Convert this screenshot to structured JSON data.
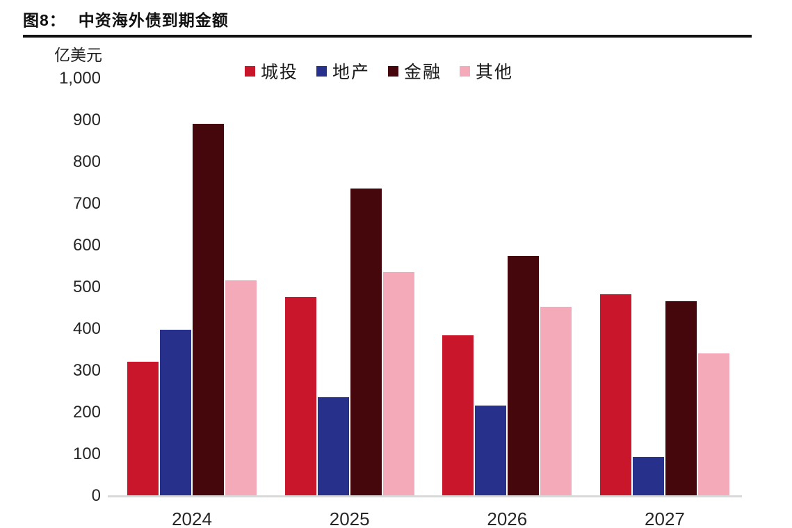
{
  "header": {
    "figure_label": "图8：",
    "title": "中资海外债到期金额"
  },
  "chart_data": {
    "type": "bar",
    "title": "中资海外债到期金额",
    "unit_label": "亿美元",
    "categories": [
      "2024",
      "2025",
      "2026",
      "2027"
    ],
    "series": [
      {
        "name": "城投",
        "color": "#c9162a",
        "values": [
          322,
          477,
          385,
          483
        ]
      },
      {
        "name": "地产",
        "color": "#27318b",
        "values": [
          398,
          236,
          217,
          93
        ]
      },
      {
        "name": "金融",
        "color": "#45060c",
        "values": [
          892,
          737,
          575,
          467
        ]
      },
      {
        "name": "其他",
        "color": "#f4aab9",
        "values": [
          517,
          537,
          453,
          341
        ]
      }
    ],
    "ylim": [
      0,
      1000
    ],
    "yticks": [
      {
        "value": 1000,
        "label": "1,000"
      },
      {
        "value": 900,
        "label": "900"
      },
      {
        "value": 800,
        "label": "800"
      },
      {
        "value": 700,
        "label": "700"
      },
      {
        "value": 600,
        "label": "600"
      },
      {
        "value": 500,
        "label": "500"
      },
      {
        "value": 400,
        "label": "400"
      },
      {
        "value": 300,
        "label": "300"
      },
      {
        "value": 200,
        "label": "200"
      },
      {
        "value": 100,
        "label": "100"
      },
      {
        "value": 0,
        "label": "0"
      }
    ],
    "legend_position": "top",
    "grid": false,
    "axis_line_color": "#d9d9d9",
    "text_color": "#262626"
  }
}
